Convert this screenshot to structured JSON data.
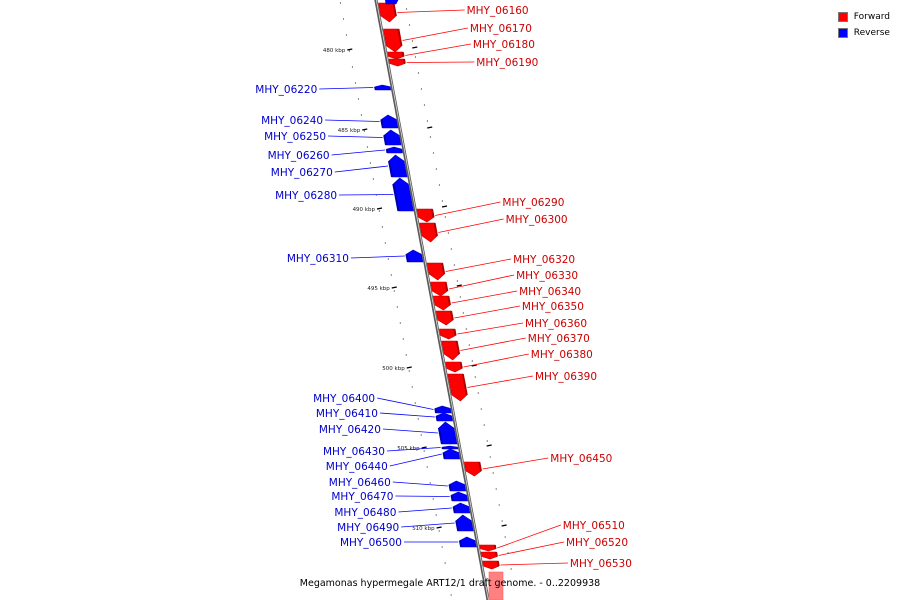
{
  "caption": "Megamonas hypermegale ART12/1 draft genome. - 0..2209938",
  "legend": [
    {
      "label": "Forward",
      "color": "#ff0000"
    },
    {
      "label": "Reverse",
      "color": "#0000ff"
    }
  ],
  "scale_labels": [
    "480 kbp",
    "485 kbp",
    "490 kbp",
    "495 kbp",
    "500 kbp",
    "505 kbp",
    "510 kbp"
  ],
  "genes": [
    {
      "name": "MHY_06160",
      "strand": "forward"
    },
    {
      "name": "MHY_06170",
      "strand": "forward"
    },
    {
      "name": "MHY_06180",
      "strand": "forward"
    },
    {
      "name": "MHY_06190",
      "strand": "forward"
    },
    {
      "name": "MHY_06220",
      "strand": "reverse"
    },
    {
      "name": "MHY_06240",
      "strand": "reverse"
    },
    {
      "name": "MHY_06250",
      "strand": "reverse"
    },
    {
      "name": "MHY_06260",
      "strand": "reverse"
    },
    {
      "name": "MHY_06270",
      "strand": "reverse"
    },
    {
      "name": "MHY_06280",
      "strand": "reverse"
    },
    {
      "name": "MHY_06290",
      "strand": "forward"
    },
    {
      "name": "MHY_06300",
      "strand": "forward"
    },
    {
      "name": "MHY_06310",
      "strand": "reverse"
    },
    {
      "name": "MHY_06320",
      "strand": "forward"
    },
    {
      "name": "MHY_06330",
      "strand": "forward"
    },
    {
      "name": "MHY_06340",
      "strand": "forward"
    },
    {
      "name": "MHY_06350",
      "strand": "forward"
    },
    {
      "name": "MHY_06360",
      "strand": "forward"
    },
    {
      "name": "MHY_06370",
      "strand": "forward"
    },
    {
      "name": "MHY_06380",
      "strand": "forward"
    },
    {
      "name": "MHY_06390",
      "strand": "forward"
    },
    {
      "name": "MHY_06400",
      "strand": "reverse"
    },
    {
      "name": "MHY_06410",
      "strand": "reverse"
    },
    {
      "name": "MHY_06420",
      "strand": "reverse"
    },
    {
      "name": "MHY_06430",
      "strand": "reverse"
    },
    {
      "name": "MHY_06440",
      "strand": "reverse"
    },
    {
      "name": "MHY_06450",
      "strand": "forward"
    },
    {
      "name": "MHY_06460",
      "strand": "reverse"
    },
    {
      "name": "MHY_06470",
      "strand": "reverse"
    },
    {
      "name": "MHY_06480",
      "strand": "reverse"
    },
    {
      "name": "MHY_06490",
      "strand": "reverse"
    },
    {
      "name": "MHY_06500",
      "strand": "reverse"
    },
    {
      "name": "MHY_06510",
      "strand": "forward"
    },
    {
      "name": "MHY_06520",
      "strand": "forward"
    },
    {
      "name": "MHY_06530",
      "strand": "forward"
    }
  ]
}
